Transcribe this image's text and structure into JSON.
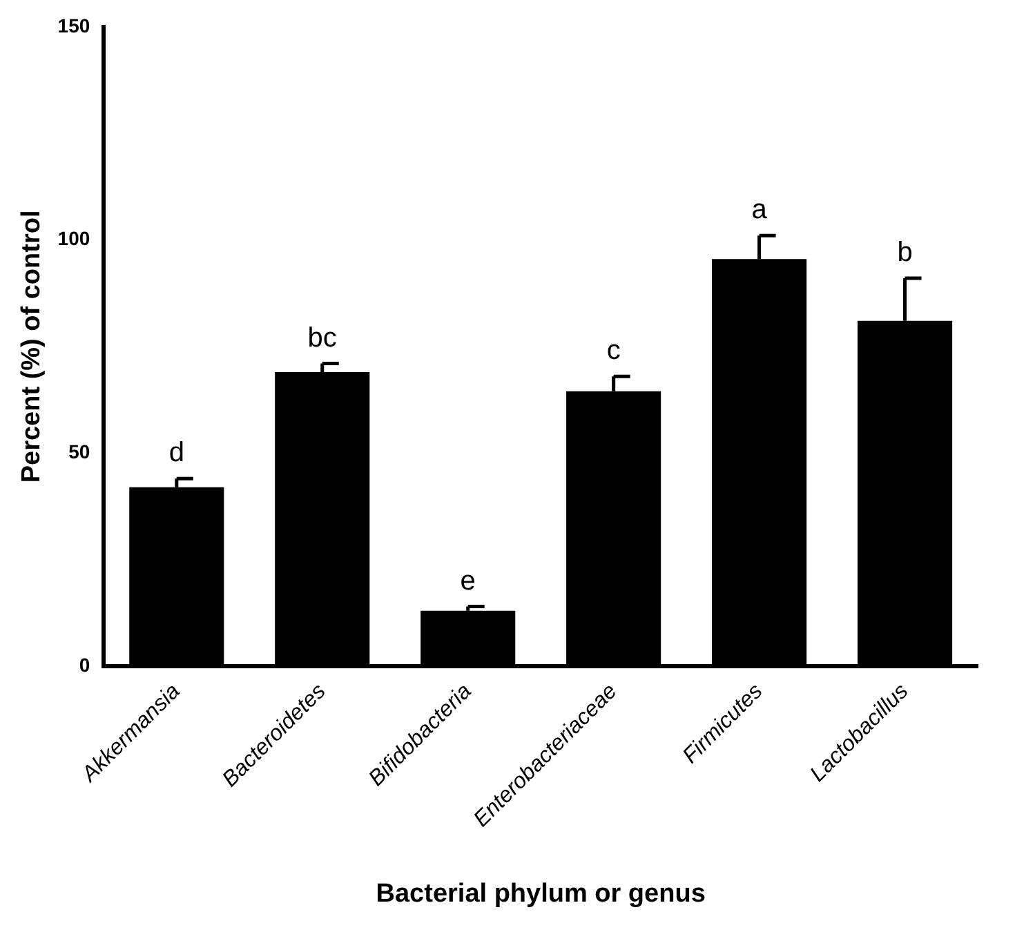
{
  "chart_data": {
    "type": "bar",
    "xlabel": "Bacterial phylum or genus",
    "ylabel": "Percent (%) of control",
    "categories": [
      "Akkermansia",
      "Bacteroidetes",
      "Bifidobacteria",
      "Enterobacteriaceae",
      "Firmicutes",
      "Lactobacillus"
    ],
    "values": [
      42,
      69,
      13,
      64.5,
      95.5,
      81
    ],
    "errors": [
      [
        42,
        44
      ],
      [
        69,
        71
      ],
      [
        13,
        14
      ],
      [
        64.5,
        68
      ],
      [
        95.5,
        101
      ],
      [
        81,
        91
      ]
    ],
    "color": "#000000",
    "ylim": [
      0,
      150
    ],
    "yticks": [
      0,
      50,
      100,
      150
    ],
    "grid": false,
    "legend": false,
    "annotations": [
      {
        "text": "d",
        "x": "Akkermansia",
        "y": 44
      },
      {
        "text": "bc",
        "x": "Bacteroidetes",
        "y": 71
      },
      {
        "text": "e",
        "x": "Bifidobacteria",
        "y": 14
      },
      {
        "text": "c",
        "x": "Enterobacteriaceae",
        "y": 68
      },
      {
        "text": "a",
        "x": "Firmicutes",
        "y": 101
      },
      {
        "text": "b",
        "x": "Lactobacillus",
        "y": 91
      }
    ]
  }
}
